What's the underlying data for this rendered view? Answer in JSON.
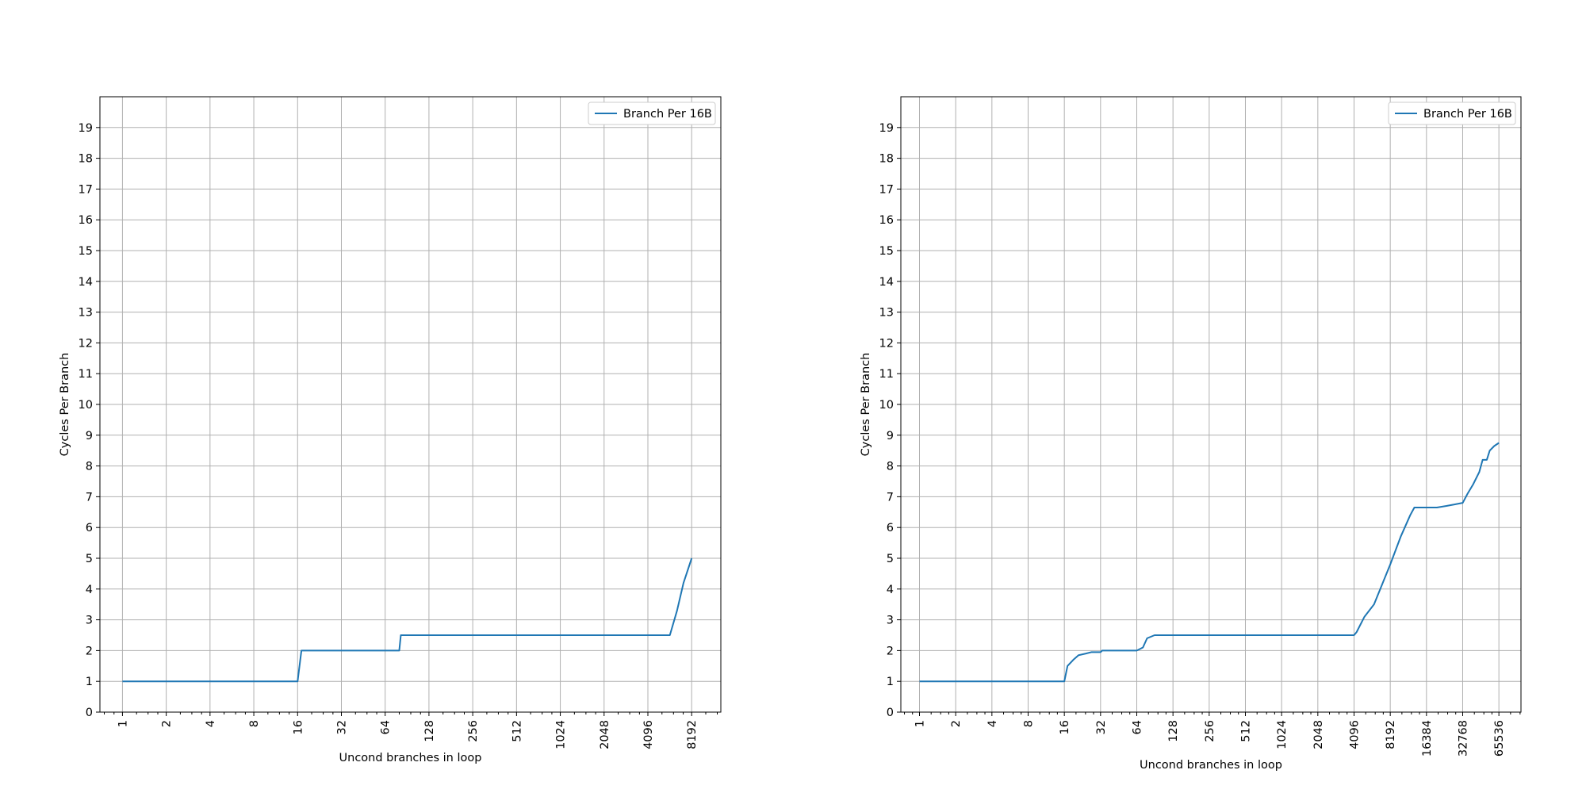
{
  "colors": {
    "series": "#1f77b4",
    "grid": "#b0b0b0",
    "axes": "#000000",
    "legend_border": "#cccccc"
  },
  "chart_data": [
    {
      "type": "line",
      "xlabel": "Uncond branches in loop",
      "ylabel": "Cycles Per Branch",
      "x_scale": "log2",
      "xlim": [
        0.7,
        13000
      ],
      "ylim": [
        0,
        20
      ],
      "xticks": [
        1,
        2,
        4,
        8,
        16,
        32,
        64,
        128,
        256,
        512,
        1024,
        2048,
        4096,
        8192
      ],
      "xtick_labels": [
        "1",
        "2",
        "4",
        "8",
        "16",
        "32",
        "64",
        "128",
        "256",
        "512",
        "1024",
        "2048",
        "4096",
        "8192"
      ],
      "yticks": [
        0,
        1,
        2,
        3,
        4,
        5,
        6,
        7,
        8,
        9,
        10,
        11,
        12,
        13,
        14,
        15,
        16,
        17,
        18,
        19
      ],
      "ytick_labels": [
        "0",
        "1",
        "2",
        "3",
        "4",
        "5",
        "6",
        "7",
        "8",
        "9",
        "10",
        "11",
        "12",
        "13",
        "14",
        "15",
        "16",
        "17",
        "18",
        "19"
      ],
      "grid": true,
      "legend_position": "top-right",
      "series": [
        {
          "name": "Branch Per 16B",
          "x": [
            1,
            16,
            17,
            80,
            82,
            5800,
            6500,
            7200,
            8192
          ],
          "y": [
            1,
            1,
            2,
            2,
            2.5,
            2.5,
            3.3,
            4.2,
            5
          ]
        }
      ]
    },
    {
      "type": "line",
      "xlabel": "Uncond branches in loop",
      "ylabel": "Cycles Per Branch",
      "x_scale": "log2",
      "xlim": [
        0.7,
        100000
      ],
      "ylim": [
        0,
        20
      ],
      "xticks": [
        1,
        2,
        4,
        8,
        16,
        32,
        64,
        128,
        256,
        512,
        1024,
        2048,
        4096,
        8192,
        16384,
        32768,
        65536
      ],
      "xtick_labels": [
        "1",
        "2",
        "4",
        "8",
        "16",
        "32",
        "64",
        "128",
        "256",
        "512",
        "1024",
        "2048",
        "4096",
        "8192",
        "16384",
        "32768",
        "65536"
      ],
      "yticks": [
        0,
        1,
        2,
        3,
        4,
        5,
        6,
        7,
        8,
        9,
        10,
        11,
        12,
        13,
        14,
        15,
        16,
        17,
        18,
        19
      ],
      "ytick_labels": [
        "0",
        "1",
        "2",
        "3",
        "4",
        "5",
        "6",
        "7",
        "8",
        "9",
        "10",
        "11",
        "12",
        "13",
        "14",
        "15",
        "16",
        "17",
        "18",
        "19"
      ],
      "grid": true,
      "legend_position": "top-right",
      "series": [
        {
          "name": "Branch Per 16B",
          "x": [
            1,
            16,
            17,
            19,
            21,
            24,
            27,
            32,
            33,
            40,
            64,
            72,
            78,
            90,
            128,
            256,
            512,
            1024,
            2048,
            4096,
            4300,
            5000,
            6000,
            8192,
            10000,
            12000,
            13000,
            16384,
            20000,
            24000,
            28000,
            32768,
            36000,
            40000,
            45000,
            48000,
            52000,
            55000,
            60000,
            65536
          ],
          "y": [
            1,
            1,
            1.5,
            1.7,
            1.85,
            1.9,
            1.95,
            1.95,
            2,
            2,
            2,
            2.1,
            2.4,
            2.5,
            2.5,
            2.5,
            2.5,
            2.5,
            2.5,
            2.5,
            2.6,
            3.1,
            3.5,
            4.8,
            5.7,
            6.4,
            6.65,
            6.65,
            6.65,
            6.7,
            6.75,
            6.8,
            7.1,
            7.4,
            7.8,
            8.2,
            8.2,
            8.5,
            8.65,
            8.75
          ]
        }
      ]
    }
  ]
}
